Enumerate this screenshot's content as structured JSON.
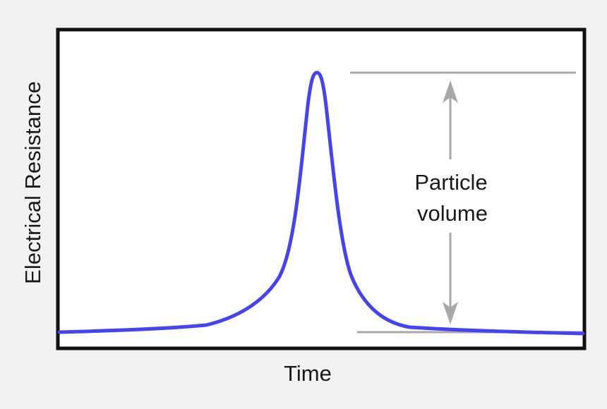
{
  "x_axis_label": "Time",
  "y_axis_label": "Electrical Resistance",
  "annotation": {
    "line1": "Particle",
    "line2": "volume"
  },
  "colors": {
    "background": "#f2f2f2",
    "plot_area": "#ffffff",
    "frame": "#111111",
    "curve": "#4343f5",
    "guides": "#a8a8a8"
  }
}
